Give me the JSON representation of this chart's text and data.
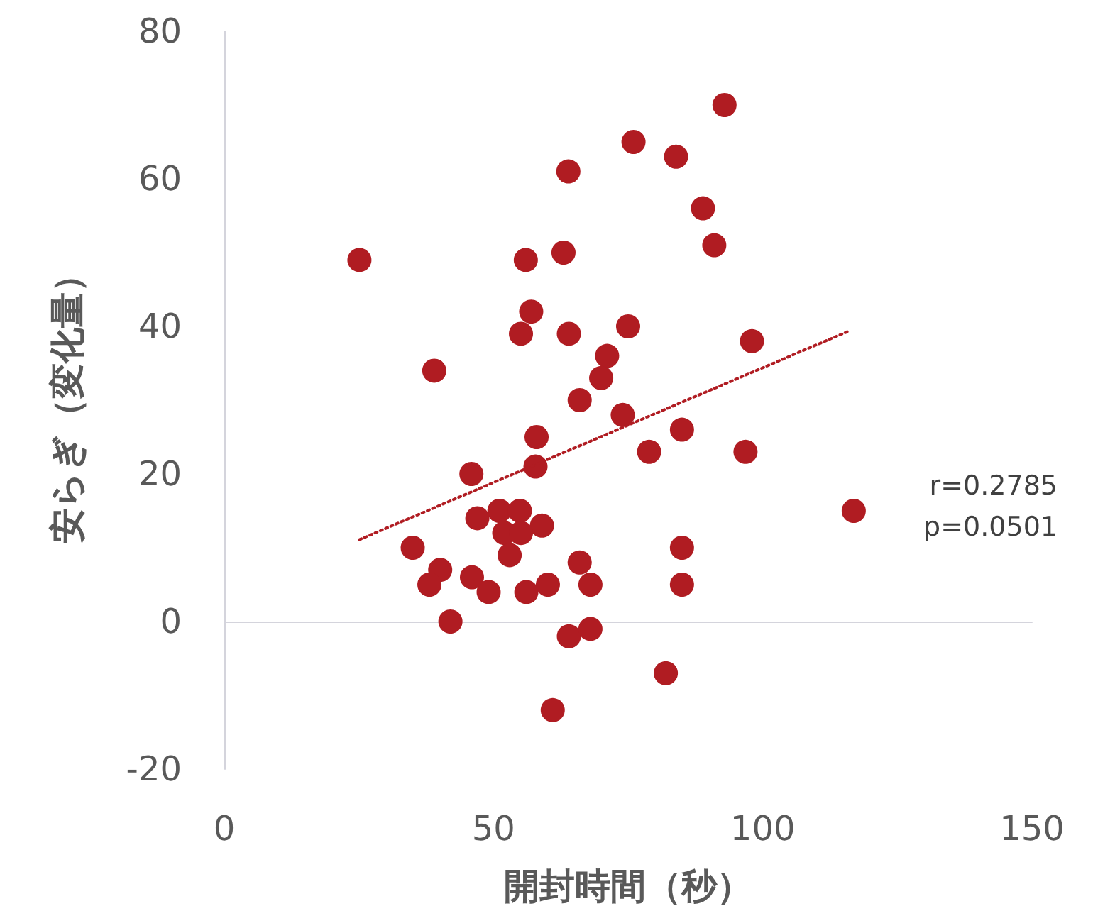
{
  "chart_data": {
    "type": "scatter",
    "xlabel": "開封時間（秒）",
    "ylabel": "安らぎ（変化量）",
    "xlim": [
      0,
      150
    ],
    "xticks": [
      0,
      50,
      100,
      150
    ],
    "ylim": [
      -20,
      80
    ],
    "yticks": [
      -20,
      0,
      20,
      40,
      60,
      80
    ],
    "annotations": [
      "r=0.2785",
      "p=0.0501"
    ],
    "series": [
      {
        "color": "#b01c22",
        "marker": "circle",
        "x": [
          92.9,
          76.0,
          83.9,
          63.9,
          88.9,
          91.0,
          25.1,
          56.0,
          63.0,
          57.0,
          55.1,
          64.0,
          75.0,
          98.0,
          39.0,
          71.1,
          70.0,
          66.0,
          74.0,
          58.0,
          85.0,
          78.9,
          96.8,
          57.8,
          45.9,
          116.9,
          47.0,
          51.1,
          54.9,
          59.0,
          52.0,
          55.1,
          53.0,
          35.0,
          40.1,
          38.1,
          46.0,
          49.1,
          56.1,
          60.1,
          66.0,
          68.0,
          85.0,
          85.0,
          42.0,
          64.0,
          68.0,
          82.0,
          61.0
        ],
        "values": [
          70,
          65,
          63,
          61,
          56,
          51,
          49,
          49,
          50,
          42,
          39,
          39,
          40,
          38,
          34,
          36,
          33,
          30,
          28,
          25,
          26,
          23,
          23,
          21,
          20,
          15,
          14,
          15,
          15,
          13,
          12,
          12,
          9,
          10,
          7,
          5,
          6,
          4,
          4,
          5,
          8,
          5,
          10,
          5,
          0,
          -2,
          -1,
          -7,
          -12
        ]
      },
      {
        "type": "line",
        "color": "#b01c22",
        "marker": "none",
        "line_style": "dotted",
        "x": [
          25.1,
          116.1
        ],
        "values": [
          11.1,
          39.4
        ]
      }
    ]
  }
}
